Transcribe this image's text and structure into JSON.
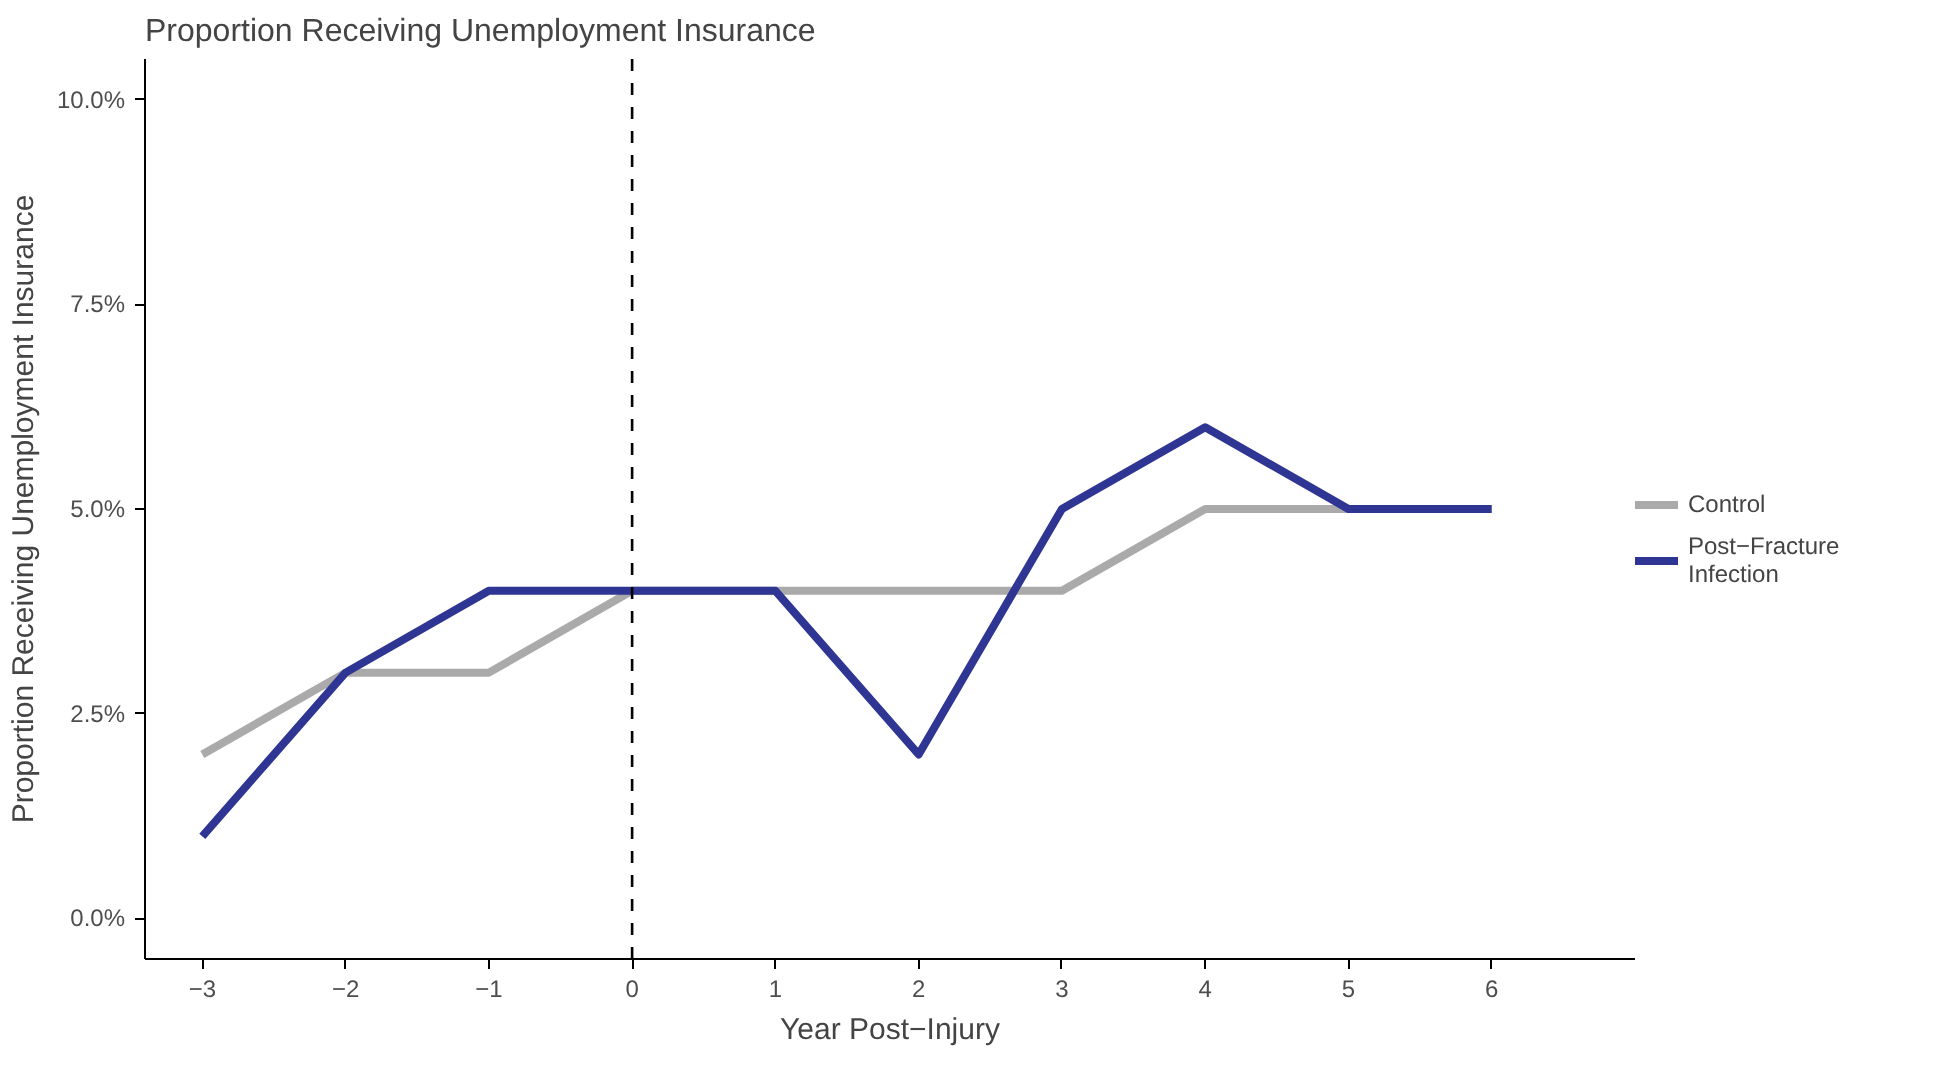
{
  "chart_data": {
    "type": "line",
    "title": "Proportion Receiving Unemployment Insurance",
    "xlabel": "Year Post−Injury",
    "ylabel": "Proportion Receiving Unemployment Insurance",
    "x": [
      -3,
      -2,
      -1,
      0,
      1,
      2,
      3,
      4,
      5,
      6
    ],
    "series": [
      {
        "name": "Control",
        "color": "#aaaaaa",
        "values": [
          2,
          3,
          3,
          4,
          4,
          4,
          4,
          5,
          5,
          null
        ]
      },
      {
        "name": "Post−Fracture\nInfection",
        "color": "#2e3592",
        "values": [
          1,
          3,
          4,
          4,
          4,
          2,
          5,
          6,
          5,
          5
        ]
      }
    ],
    "xlim": [
      -3.4,
      7
    ],
    "ylim": [
      -0.5,
      10.5
    ],
    "xticks": [
      {
        "value": -3,
        "label": "−3"
      },
      {
        "value": -2,
        "label": "−2"
      },
      {
        "value": -1,
        "label": "−1"
      },
      0,
      1,
      2,
      3,
      4,
      5,
      6
    ],
    "yticks": [
      {
        "value": 0,
        "label": "0.0%"
      },
      {
        "value": 2.5,
        "label": "2.5%"
      },
      {
        "value": 5,
        "label": "5.0%"
      },
      {
        "value": 7.5,
        "label": "7.5%"
      },
      {
        "value": 10,
        "label": "10.0%"
      }
    ],
    "ref_lines": [
      {
        "axis": "x",
        "value": 0,
        "color": "#000000",
        "line_style": "dashed"
      }
    ],
    "grid": false,
    "legend": "right",
    "line_style": "solid",
    "marker": "none"
  }
}
